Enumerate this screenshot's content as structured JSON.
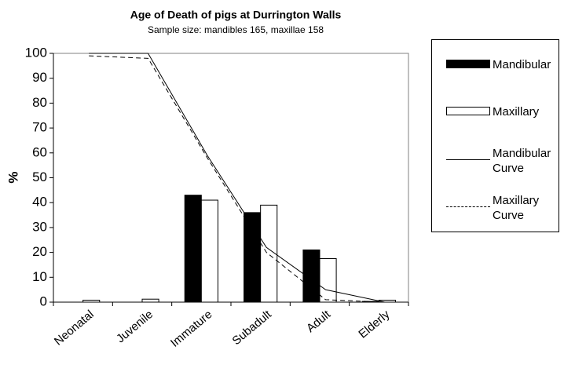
{
  "chart_data": {
    "type": "bar",
    "title": "Age of Death of pigs at Durrington Walls",
    "subtitle": "Sample size: mandibles 165, maxillae 158",
    "y_label": "%",
    "categories": [
      "Neonatal",
      "Juvenile",
      "Immature",
      "Subadult",
      "Adult",
      "Elderly"
    ],
    "series": [
      {
        "name": "Mandibular",
        "type": "bar",
        "color": "#000000",
        "values": [
          0,
          0,
          43,
          36,
          21,
          0.3
        ]
      },
      {
        "name": "Maxillary",
        "type": "bar",
        "color": "#ffffff",
        "values": [
          0.8,
          1.2,
          41,
          39,
          17.5,
          0.8
        ]
      },
      {
        "name": "Mandibular Curve",
        "type": "line",
        "color": "#000000",
        "dash": false,
        "values": [
          100,
          100,
          59,
          22,
          5,
          0
        ]
      },
      {
        "name": "Maxillary Curve",
        "type": "line",
        "color": "#000000",
        "dash": true,
        "values": [
          99,
          98,
          58,
          20,
          1,
          0
        ]
      }
    ],
    "ylim": [
      0,
      100
    ],
    "yticks": [
      0,
      10,
      20,
      30,
      40,
      50,
      60,
      70,
      80,
      90,
      100
    ],
    "grid": false,
    "legend": "right"
  }
}
